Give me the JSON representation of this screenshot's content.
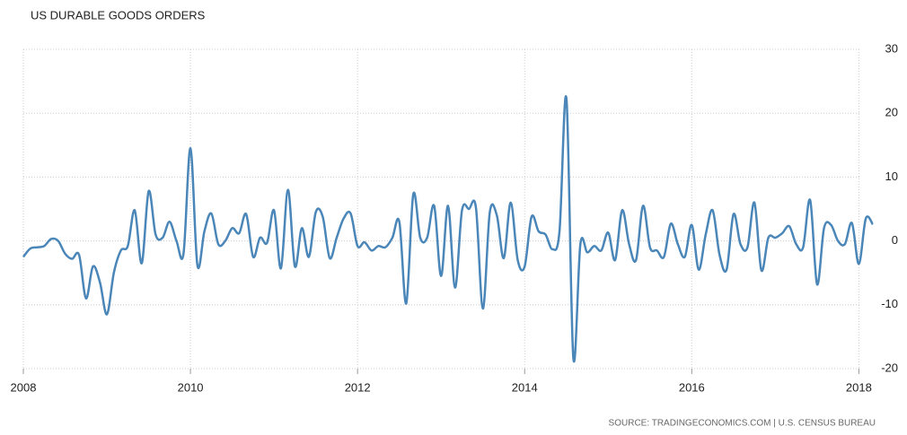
{
  "chart_data": {
    "type": "line",
    "title": "US DURABLE GOODS ORDERS",
    "source": "SOURCE: TRADINGECONOMICS.COM | U.S. CENSUS BUREAU",
    "x": [
      2008,
      2008.083,
      2008.167,
      2008.25,
      2008.333,
      2008.417,
      2008.5,
      2008.583,
      2008.667,
      2008.75,
      2008.833,
      2008.917,
      2009,
      2009.083,
      2009.167,
      2009.25,
      2009.333,
      2009.417,
      2009.5,
      2009.583,
      2009.667,
      2009.75,
      2009.833,
      2009.917,
      2010,
      2010.083,
      2010.167,
      2010.25,
      2010.333,
      2010.417,
      2010.5,
      2010.583,
      2010.667,
      2010.75,
      2010.833,
      2010.917,
      2011,
      2011.083,
      2011.167,
      2011.25,
      2011.333,
      2011.417,
      2011.5,
      2011.583,
      2011.667,
      2011.75,
      2011.833,
      2011.917,
      2012,
      2012.083,
      2012.167,
      2012.25,
      2012.333,
      2012.417,
      2012.5,
      2012.583,
      2012.667,
      2012.75,
      2012.833,
      2012.917,
      2013,
      2013.083,
      2013.167,
      2013.25,
      2013.333,
      2013.417,
      2013.5,
      2013.583,
      2013.667,
      2013.75,
      2013.833,
      2013.917,
      2014,
      2014.083,
      2014.167,
      2014.25,
      2014.333,
      2014.417,
      2014.5,
      2014.583,
      2014.667,
      2014.75,
      2014.833,
      2014.917,
      2015,
      2015.083,
      2015.167,
      2015.25,
      2015.333,
      2015.417,
      2015.5,
      2015.583,
      2015.667,
      2015.75,
      2015.833,
      2015.917,
      2016,
      2016.083,
      2016.167,
      2016.25,
      2016.333,
      2016.417,
      2016.5,
      2016.583,
      2016.667,
      2016.75,
      2016.833,
      2016.917,
      2017,
      2017.083,
      2017.167,
      2017.25,
      2017.333,
      2017.417,
      2017.5,
      2017.583,
      2017.667,
      2017.75,
      2017.833,
      2017.917,
      2018,
      2018.083,
      2018.167
    ],
    "series": [
      {
        "name": "US Durable Goods Orders",
        "color": "#4a86b8",
        "values": [
          -2.5,
          -1.2,
          -1,
          -0.8,
          0.3,
          0,
          -2,
          -2.8,
          -2.2,
          -9,
          -4,
          -6.5,
          -11.5,
          -5,
          -1.5,
          -0.8,
          4.8,
          -3.5,
          7.8,
          1,
          0.5,
          3,
          0,
          -2,
          14.5,
          -3.8,
          1.5,
          4.3,
          -0.5,
          0,
          2,
          1.2,
          4.2,
          -2.5,
          0.5,
          -0.3,
          4.8,
          -4.3,
          8,
          -4,
          2,
          -2.5,
          4.5,
          3.8,
          -2.7,
          0.5,
          3.5,
          4.3,
          -0.8,
          -0.2,
          -1.5,
          -0.8,
          -1,
          0.5,
          3,
          -9.8,
          7.3,
          0.5,
          0.5,
          5.5,
          -5.5,
          5.5,
          -7.3,
          4.8,
          5,
          5.2,
          -10.6,
          4.5,
          4,
          -2.7,
          6,
          -3,
          -4,
          3.8,
          1.5,
          1,
          -1.3,
          1.5,
          22.3,
          -18.4,
          -0.5,
          -1.8,
          -0.8,
          -1.5,
          1.3,
          -3,
          4.8,
          -0.5,
          -3,
          5.5,
          -1,
          -1.5,
          -2.5,
          2.7,
          -0.5,
          -2.5,
          2.5,
          -4.5,
          1,
          4.8,
          -2.2,
          -4.5,
          4.2,
          -0.5,
          -1,
          6,
          -4.6,
          0.5,
          0.5,
          1.2,
          2.3,
          -0.5,
          -1,
          6.4,
          -6.8,
          2,
          2.5,
          0,
          -0.5,
          2.8,
          -3.6,
          3.5,
          2.6
        ]
      }
    ],
    "xlim": [
      2008,
      2018.2
    ],
    "xticks": [
      2008,
      2010,
      2012,
      2014,
      2016,
      2018
    ],
    "ylim": [
      -20,
      30
    ],
    "yticks": [
      -20,
      -10,
      0,
      10,
      20,
      30
    ],
    "grid": true
  }
}
